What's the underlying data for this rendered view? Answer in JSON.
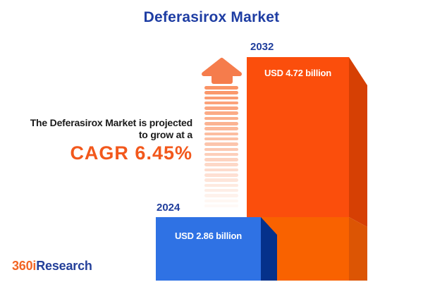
{
  "title": "Deferasirox Market",
  "tagline": {
    "line1": "The Deferasirox Market is projected",
    "line2": "to grow at a",
    "cagr": "CAGR 6.45%"
  },
  "bars": {
    "b2024": {
      "year": "2024",
      "value": "USD 2.86 billion"
    },
    "b2032": {
      "year": "2032",
      "value": "USD 4.72 billion"
    }
  },
  "logo": {
    "prefix": "360i",
    "suffix": "Research"
  },
  "colors": {
    "title_blue": "#1e3da3",
    "year_blue": "#203e9c",
    "cagr_orange": "#f2581c",
    "text_dark": "#1a1a1a",
    "bar2024_face": "#2f72e4",
    "bar2024_side": "#05318b",
    "bar2032_face_top": "#fb4e0c",
    "bar2032_side_top": "#d64004",
    "bar2032_face_bottom": "#f96200",
    "bar2032_side_bottom": "#dc5504",
    "arrow_orange": "#f57c4c",
    "stripe_orange": "#fa9466",
    "logo_orange": "#f26524",
    "logo_blue": "#24409a"
  },
  "chart_data": {
    "type": "bar",
    "title": "Deferasirox Market",
    "categories": [
      "2024",
      "2032"
    ],
    "values": [
      2.86,
      4.72
    ],
    "unit": "USD billion",
    "value_labels": [
      "USD 2.86 billion",
      "USD 4.72 billion"
    ],
    "series_colors": [
      "#2f72e4",
      "#fb4e0c"
    ],
    "annotations": [
      "The Deferasirox Market is projected to grow at a",
      "CAGR 6.45%"
    ],
    "legend": "none",
    "axes": "none",
    "style": "3d-infographic-bars"
  }
}
